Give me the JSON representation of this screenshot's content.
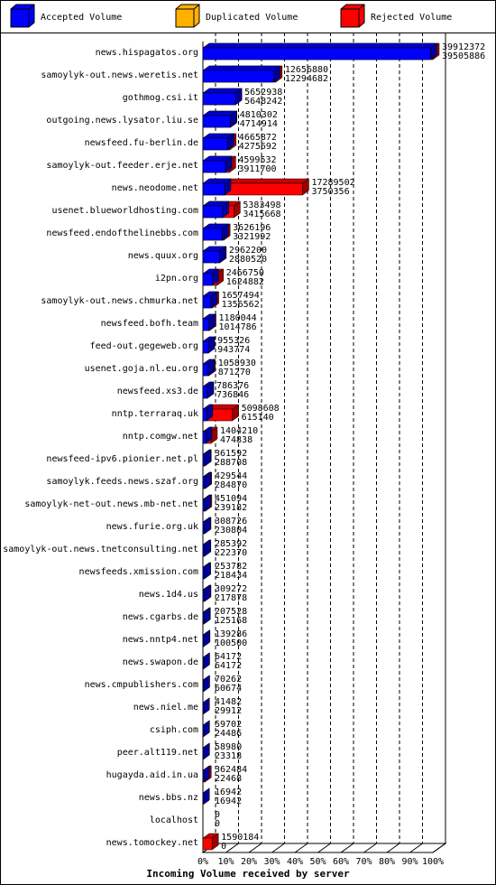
{
  "chart_data": {
    "type": "hbar3d",
    "title": "Incoming Volume received by server",
    "series": [
      {
        "name": "Accepted Volume",
        "color": "#0000ff"
      },
      {
        "name": "Duplicated Volume",
        "color": "#ffb000"
      },
      {
        "name": "Rejected Volume",
        "color": "#ff0000"
      }
    ],
    "xlim": [
      0,
      39912372
    ],
    "xticks": [
      {
        "value": 0,
        "label": "0%"
      },
      {
        "value": 3991237.2,
        "label": "10%"
      },
      {
        "value": 7982474.4,
        "label": "20%"
      },
      {
        "value": 11973711.6,
        "label": "30%"
      },
      {
        "value": 15964948.8,
        "label": "40%"
      },
      {
        "value": 19956186,
        "label": "50%"
      },
      {
        "value": 23947423.2,
        "label": "60%"
      },
      {
        "value": 27938660.4,
        "label": "70%"
      },
      {
        "value": 31929897.6,
        "label": "80%"
      },
      {
        "value": 35921134.8,
        "label": "90%"
      },
      {
        "value": 39912372,
        "label": "100%"
      }
    ],
    "rows": [
      {
        "name": "news.hispagatos.org",
        "total": 39912372,
        "accepted": 39505886,
        "color": "#ff0000"
      },
      {
        "name": "samoylyk-out.news.weretis.net",
        "total": 12656880,
        "accepted": 12294682,
        "color": "#ff0000"
      },
      {
        "name": "gothmog.csi.it",
        "total": 5652938,
        "accepted": 5648242,
        "color": "#ffb000"
      },
      {
        "name": "outgoing.news.lysator.liu.se",
        "total": 4810302,
        "accepted": 4714914,
        "color": "#ff0000"
      },
      {
        "name": "newsfeed.fu-berlin.de",
        "total": 4665872,
        "accepted": 4275692,
        "color": "#ff0000"
      },
      {
        "name": "samoylyk-out.feeder.erje.net",
        "total": 4599532,
        "accepted": 3911700,
        "color": "#ff0000"
      },
      {
        "name": "news.neodome.net",
        "total": 17289502,
        "accepted": 3750356,
        "color": "#ff0000"
      },
      {
        "name": "usenet.blueworldhosting.com",
        "total": 5383498,
        "accepted": 3415668,
        "color": "#ff0000"
      },
      {
        "name": "newsfeed.endofthelinebbs.com",
        "total": 3626196,
        "accepted": 3321992,
        "color": "#ff0000"
      },
      {
        "name": "news.quux.org",
        "total": 2962200,
        "accepted": 2880520,
        "color": "#ffb000"
      },
      {
        "name": "i2pn.org",
        "total": 2466750,
        "accepted": 1624882,
        "color": "#ff0000"
      },
      {
        "name": "samoylyk-out.news.chmurka.net",
        "total": 1657494,
        "accepted": 1356562,
        "color": "#ff0000"
      },
      {
        "name": "newsfeed.bofh.team",
        "total": 1180044,
        "accepted": 1014786,
        "color": "#ff0000"
      },
      {
        "name": "feed-out.gegeweb.org",
        "total": 955326,
        "accepted": 943774,
        "color": "#ffb000"
      },
      {
        "name": "usenet.goja.nl.eu.org",
        "total": 1058930,
        "accepted": 871270,
        "color": "#ff0000"
      },
      {
        "name": "newsfeed.xs3.de",
        "total": 786376,
        "accepted": 736846,
        "color": "#ff0000"
      },
      {
        "name": "nntp.terraraq.uk",
        "total": 5098608,
        "accepted": 615140,
        "color": "#ff0000"
      },
      {
        "name": "nntp.comgw.net",
        "total": 1404210,
        "accepted": 474838,
        "color": "#ff0000"
      },
      {
        "name": "newsfeed-ipv6.pionier.net.pl",
        "total": 361592,
        "accepted": 288708,
        "color": "#ff0000"
      },
      {
        "name": "samoylyk.feeds.news.szaf.org",
        "total": 429544,
        "accepted": 284870,
        "color": "#ff0000"
      },
      {
        "name": "samoylyk-net-out.news.mb-net.net",
        "total": 451094,
        "accepted": 239182,
        "color": "#ff0000"
      },
      {
        "name": "news.furie.org.uk",
        "total": 308726,
        "accepted": 230804,
        "color": "#ff0000"
      },
      {
        "name": "samoylyk-out.news.tnetconsulting.net",
        "total": 285392,
        "accepted": 222370,
        "color": "#ff0000"
      },
      {
        "name": "newsfeeds.xmission.com",
        "total": 253782,
        "accepted": 218434,
        "color": "#ffb000"
      },
      {
        "name": "news.1d4.us",
        "total": 309272,
        "accepted": 217878,
        "color": "#ff0000"
      },
      {
        "name": "news.cgarbs.de",
        "total": 207528,
        "accepted": 125168,
        "color": "#ff0000"
      },
      {
        "name": "news.nntp4.net",
        "total": 139286,
        "accepted": 100500,
        "color": "#ff0000"
      },
      {
        "name": "news.swapon.de",
        "total": 64172,
        "accepted": 64172,
        "color": "#0000ff"
      },
      {
        "name": "news.cmpublishers.com",
        "total": 70262,
        "accepted": 60674,
        "color": "#ffb000"
      },
      {
        "name": "news.niel.me",
        "total": 41482,
        "accepted": 29912,
        "color": "#ffb000"
      },
      {
        "name": "csiph.com",
        "total": 59702,
        "accepted": 24486,
        "color": "#ffb000"
      },
      {
        "name": "peer.alt119.net",
        "total": 58980,
        "accepted": 23318,
        "color": "#ffb000"
      },
      {
        "name": "hugayda.aid.in.ua",
        "total": 362484,
        "accepted": 22468,
        "color": "#ff0000"
      },
      {
        "name": "news.bbs.nz",
        "total": 16942,
        "accepted": 16942,
        "color": "#0000ff"
      },
      {
        "name": "localhost",
        "total": 0,
        "accepted": 0,
        "color": "#ff0000"
      },
      {
        "name": "news.tomockey.net",
        "total": 1590184,
        "accepted": 0,
        "color": "#ff0000"
      }
    ]
  }
}
